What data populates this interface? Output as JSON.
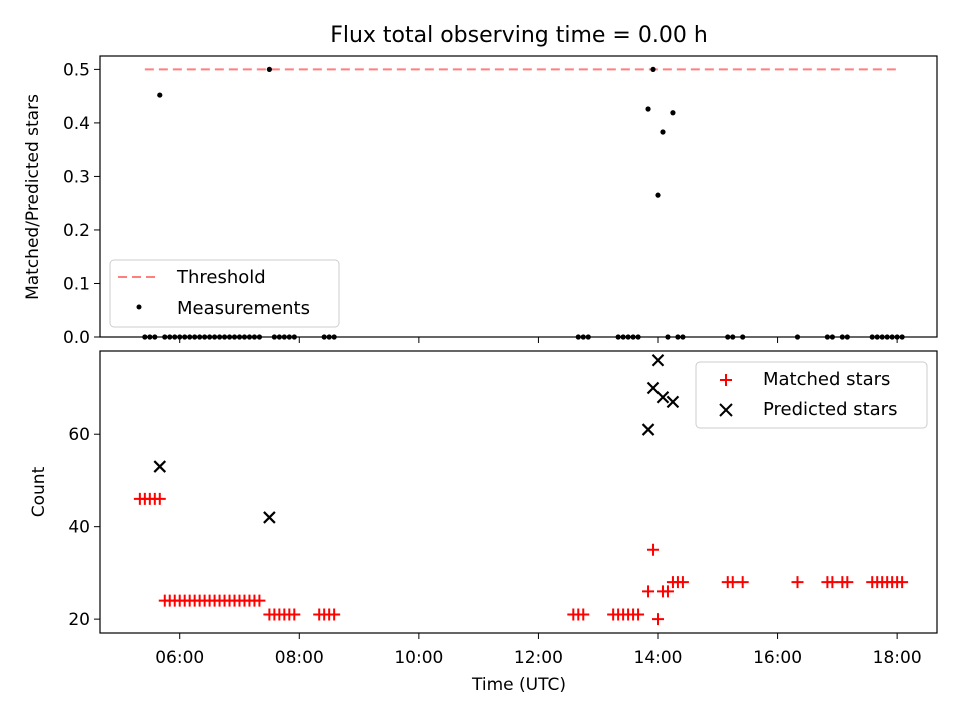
{
  "chart_data": [
    {
      "type": "scatter",
      "title": "Flux total observing time = 0.00 h",
      "xlabel": "",
      "ylabel": "Matched/Predicted stars",
      "ylim": [
        0,
        0.525
      ],
      "yticks": [
        0.0,
        0.1,
        0.2,
        0.3,
        0.4,
        0.5
      ],
      "ytick_labels": [
        "0.0",
        "0.1",
        "0.2",
        "0.3",
        "0.4",
        "0.5"
      ],
      "grid": false,
      "legend_position": "lower-left",
      "series": [
        {
          "name": "Threshold",
          "kind": "dashed-line",
          "color": "#ff7f7f",
          "x": [
            "05:25",
            "18:00"
          ],
          "y": [
            0.5,
            0.5
          ]
        },
        {
          "name": "Measurements",
          "kind": "points",
          "color": "#000000",
          "x": [
            "05:40",
            "07:30",
            "13:50",
            "13:55",
            "14:00",
            "14:05",
            "14:15",
            "05:25",
            "05:30",
            "05:35",
            "05:45",
            "05:50",
            "05:55",
            "06:00",
            "06:05",
            "06:10",
            "06:15",
            "06:20",
            "06:25",
            "06:30",
            "06:35",
            "06:40",
            "06:45",
            "06:50",
            "06:55",
            "07:00",
            "07:05",
            "07:10",
            "07:15",
            "07:20",
            "07:35",
            "07:40",
            "07:45",
            "07:50",
            "07:55",
            "08:25",
            "08:30",
            "08:35",
            "12:40",
            "12:45",
            "12:50",
            "13:20",
            "13:25",
            "13:30",
            "13:35",
            "13:40",
            "14:10",
            "14:20",
            "14:25",
            "15:10",
            "15:15",
            "15:25",
            "16:20",
            "16:50",
            "16:55",
            "17:05",
            "17:10",
            "17:35",
            "17:40",
            "17:45",
            "17:50",
            "17:55",
            "18:00",
            "18:05"
          ],
          "y": [
            0.452,
            0.5,
            0.426,
            0.5,
            0.265,
            0.383,
            0.419,
            0,
            0,
            0,
            0,
            0,
            0,
            0,
            0,
            0,
            0,
            0,
            0,
            0,
            0,
            0,
            0,
            0,
            0,
            0,
            0,
            0,
            0,
            0,
            0,
            0,
            0,
            0,
            0,
            0,
            0,
            0,
            0,
            0,
            0,
            0,
            0,
            0,
            0,
            0,
            0,
            0,
            0,
            0,
            0,
            0,
            0,
            0,
            0,
            0,
            0,
            0,
            0,
            0,
            0,
            0,
            0,
            0
          ]
        }
      ]
    },
    {
      "type": "scatter",
      "title": "",
      "xlabel": "Time (UTC)",
      "ylabel": "Count",
      "xlim": [
        "04:40",
        "18:40"
      ],
      "xticks": [
        "06:00",
        "08:00",
        "10:00",
        "12:00",
        "14:00",
        "16:00",
        "18:00"
      ],
      "ylim": [
        17,
        78
      ],
      "yticks": [
        20,
        40,
        60
      ],
      "ytick_labels": [
        "20",
        "40",
        "60"
      ],
      "grid": false,
      "legend_position": "top-right",
      "series": [
        {
          "name": "Matched stars",
          "marker": "+",
          "color": "#ff0000",
          "x": [
            "05:20",
            "05:25",
            "05:30",
            "05:35",
            "05:40",
            "05:45",
            "05:50",
            "05:55",
            "06:00",
            "06:05",
            "06:10",
            "06:15",
            "06:20",
            "06:25",
            "06:30",
            "06:35",
            "06:40",
            "06:45",
            "06:50",
            "06:55",
            "07:00",
            "07:05",
            "07:10",
            "07:15",
            "07:20",
            "07:30",
            "07:35",
            "07:40",
            "07:45",
            "07:50",
            "07:55",
            "08:20",
            "08:25",
            "08:30",
            "08:35",
            "12:35",
            "12:40",
            "12:45",
            "13:15",
            "13:20",
            "13:25",
            "13:30",
            "13:35",
            "13:40",
            "13:50",
            "13:55",
            "14:00",
            "14:05",
            "14:10",
            "14:15",
            "14:20",
            "14:25",
            "15:10",
            "15:15",
            "15:25",
            "16:20",
            "16:50",
            "16:55",
            "17:05",
            "17:10",
            "17:35",
            "17:40",
            "17:45",
            "17:50",
            "17:55",
            "18:00",
            "18:05"
          ],
          "y": [
            46,
            46,
            46,
            46,
            46,
            24,
            24,
            24,
            24,
            24,
            24,
            24,
            24,
            24,
            24,
            24,
            24,
            24,
            24,
            24,
            24,
            24,
            24,
            24,
            24,
            21,
            21,
            21,
            21,
            21,
            21,
            21,
            21,
            21,
            21,
            21,
            21,
            21,
            21,
            21,
            21,
            21,
            21,
            21,
            26,
            35,
            20,
            26,
            26,
            28,
            28,
            28,
            28,
            28,
            28,
            28,
            28,
            28,
            28,
            28,
            28,
            28,
            28,
            28,
            28,
            28,
            28
          ]
        },
        {
          "name": "Predicted stars",
          "marker": "x",
          "color": "#000000",
          "x": [
            "05:40",
            "07:30",
            "13:50",
            "13:55",
            "14:00",
            "14:05",
            "14:15"
          ],
          "y": [
            53,
            42,
            61,
            70,
            76,
            68,
            67
          ]
        }
      ]
    }
  ]
}
